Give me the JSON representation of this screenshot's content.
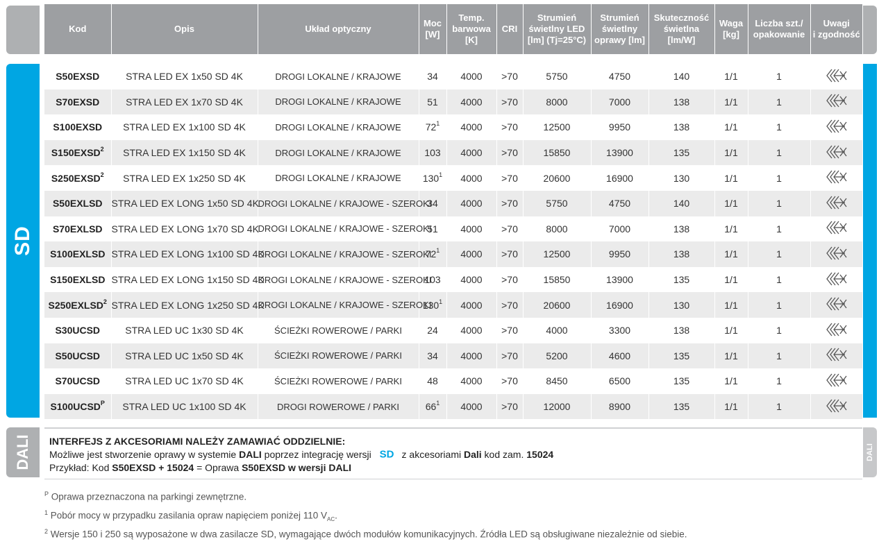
{
  "sd_tab_label": "SD",
  "dali_tab_label": "DALI",
  "dali_strip_label": "DALI",
  "headers": {
    "kod": "Kod",
    "opis": "Opis",
    "uklad": "Układ optyczny",
    "moc_1": "Moc",
    "moc_2": "[W]",
    "temp_1": "Temp.",
    "temp_2": "barwowa",
    "temp_3": "[K]",
    "cri": "CRI",
    "str_led_1": "Strumień",
    "str_led_2": "świetlny LED",
    "str_led_3": "[lm] (Tj=25°C)",
    "str_opr_1": "Strumień",
    "str_opr_2": "świetlny",
    "str_opr_3": "oprawy [lm]",
    "skut_1": "Skuteczność",
    "skut_2": "świetlna",
    "skut_3": "[lm/W]",
    "waga_1": "Waga",
    "waga_2": "[kg]",
    "liczba_1": "Liczba szt./",
    "liczba_2": "opakowanie",
    "uwagi_1": "Uwagi",
    "uwagi_2": "i zgodność"
  },
  "rows": [
    {
      "code": "S50EXSD",
      "code_sup": "",
      "desc": "STRA LED EX 1x50 SD 4K",
      "optic": "DROGI LOKALNE / KRAJOWE",
      "power": "34",
      "power_sup": "",
      "temp": "4000",
      "cri": ">70",
      "flux_led": "5750",
      "flux_lum": "4750",
      "eff": "140",
      "weight": "1/1",
      "qty": "1"
    },
    {
      "code": "S70EXSD",
      "code_sup": "",
      "desc": "STRA LED EX 1x70 SD 4K",
      "optic": "DROGI LOKALNE / KRAJOWE",
      "power": "51",
      "power_sup": "",
      "temp": "4000",
      "cri": ">70",
      "flux_led": "8000",
      "flux_lum": "7000",
      "eff": "138",
      "weight": "1/1",
      "qty": "1"
    },
    {
      "code": "S100EXSD",
      "code_sup": "",
      "desc": "STRA LED EX 1x100 SD 4K",
      "optic": "DROGI LOKALNE / KRAJOWE",
      "power": "72",
      "power_sup": "1",
      "temp": "4000",
      "cri": ">70",
      "flux_led": "12500",
      "flux_lum": "9950",
      "eff": "138",
      "weight": "1/1",
      "qty": "1"
    },
    {
      "code": "S150EXSD",
      "code_sup": "2",
      "desc": "STRA LED EX 1x150 SD 4K",
      "optic": "DROGI LOKALNE / KRAJOWE",
      "power": "103",
      "power_sup": "",
      "temp": "4000",
      "cri": ">70",
      "flux_led": "15850",
      "flux_lum": "13900",
      "eff": "135",
      "weight": "1/1",
      "qty": "1"
    },
    {
      "code": "S250EXSD",
      "code_sup": "2",
      "desc": "STRA LED EX 1x250 SD 4K",
      "optic": "DROGI LOKALNE / KRAJOWE",
      "power": "130",
      "power_sup": "1",
      "temp": "4000",
      "cri": ">70",
      "flux_led": "20600",
      "flux_lum": "16900",
      "eff": "130",
      "weight": "1/1",
      "qty": "1"
    },
    {
      "code": "S50EXLSD",
      "code_sup": "",
      "desc": "STRA LED EX LONG 1x50 SD 4K",
      "optic": "DROGI LOKALNE / KRAJOWE - SZEROKI",
      "power": "34",
      "power_sup": "",
      "temp": "4000",
      "cri": ">70",
      "flux_led": "5750",
      "flux_lum": "4750",
      "eff": "140",
      "weight": "1/1",
      "qty": "1"
    },
    {
      "code": "S70EXLSD",
      "code_sup": "",
      "desc": "STRA LED EX LONG 1x70 SD 4K",
      "optic": "DROGI LOKALNE / KRAJOWE - SZEROKI",
      "power": "51",
      "power_sup": "",
      "temp": "4000",
      "cri": ">70",
      "flux_led": "8000",
      "flux_lum": "7000",
      "eff": "138",
      "weight": "1/1",
      "qty": "1"
    },
    {
      "code": "S100EXLSD",
      "code_sup": "",
      "desc": "STRA LED EX LONG 1x100 SD 4K",
      "optic": "DROGI LOKALNE / KRAJOWE - SZEROKI",
      "power": "72",
      "power_sup": "1",
      "temp": "4000",
      "cri": ">70",
      "flux_led": "12500",
      "flux_lum": "9950",
      "eff": "138",
      "weight": "1/1",
      "qty": "1"
    },
    {
      "code": "S150EXLSD",
      "code_sup": "",
      "desc": "STRA LED EX LONG 1x150 SD 4K",
      "optic": "DROGI LOKALNE / KRAJOWE - SZEROKI",
      "power": "103",
      "power_sup": "",
      "temp": "4000",
      "cri": ">70",
      "flux_led": "15850",
      "flux_lum": "13900",
      "eff": "135",
      "weight": "1/1",
      "qty": "1"
    },
    {
      "code": "S250EXLSD",
      "code_sup": "2",
      "desc": "STRA LED EX LONG 1x250 SD 4K",
      "optic": "DROGI LOKALNE / KRAJOWE - SZEROKI",
      "power": "130",
      "power_sup": "1",
      "temp": "4000",
      "cri": ">70",
      "flux_led": "20600",
      "flux_lum": "16900",
      "eff": "130",
      "weight": "1/1",
      "qty": "1"
    },
    {
      "code": "S30UCSD",
      "code_sup": "",
      "desc": "STRA LED UC 1x30 SD 4K",
      "optic": "ŚCIEŻKI ROWEROWE / PARKI",
      "power": "24",
      "power_sup": "",
      "temp": "4000",
      "cri": ">70",
      "flux_led": "4000",
      "flux_lum": "3300",
      "eff": "138",
      "weight": "1/1",
      "qty": "1"
    },
    {
      "code": "S50UCSD",
      "code_sup": "",
      "desc": "STRA LED UC 1x50 SD 4K",
      "optic": "ŚCIEŻKI  ROWEROWE / PARKI",
      "power": "34",
      "power_sup": "",
      "temp": "4000",
      "cri": ">70",
      "flux_led": "5200",
      "flux_lum": "4600",
      "eff": "135",
      "weight": "1/1",
      "qty": "1"
    },
    {
      "code": "S70UCSD",
      "code_sup": "",
      "desc": "STRA LED UC 1x70 SD 4K",
      "optic": "ŚCIEŻKI  ROWEROWE / PARKI",
      "power": "48",
      "power_sup": "",
      "temp": "4000",
      "cri": ">70",
      "flux_led": "8450",
      "flux_lum": "6500",
      "eff": "135",
      "weight": "1/1",
      "qty": "1"
    },
    {
      "code": "S100UCSD",
      "code_sup": "P",
      "desc": "STRA LED UC 1x100 SD 4K",
      "optic": "DROGI ROWEROWE / PARKI",
      "power": "66",
      "power_sup": "1",
      "temp": "4000",
      "cri": ">70",
      "flux_led": "12000",
      "flux_lum": "8900",
      "eff": "135",
      "weight": "1/1",
      "qty": "1"
    }
  ],
  "dali": {
    "line1": "INTERFEJS Z AKCESORIAMI NALEŻY ZAMAWIAĆ ODDZIELNIE:",
    "line2_a": "Możliwe jest stworzenie oprawy w systemie ",
    "line2_b": "DALI",
    "line2_c": " poprzez integrację wersji ",
    "line2_logo": "SD",
    "line2_d": " z akcesoriami ",
    "line2_e": "Dali",
    "line2_f": " kod zam. ",
    "line2_g": "15024",
    "line3_a": "Przykład: Kod ",
    "line3_b": "S50EXSD + 15024",
    "line3_c": " = Oprawa ",
    "line3_d": "S50EXSD w wersji DALI"
  },
  "footnotes": {
    "p_mark": "P",
    "p_text": " Oprawa przeznaczona na parkingi zewnętrzne.",
    "n1_mark": "1",
    "n1_text": " Pobór mocy w przypadku zasilania opraw napięciem poniżej 110 V",
    "n1_sub": "AC",
    "n1_end": ".",
    "n2_mark": "2",
    "n2_text": " Wersje 150 i 250 są wyposażone w dwa zasilacze SD, wymagające dwóch modułów komunikacyjnych. Źródła LED są obsługiwane niezależnie od siebie."
  },
  "colors": {
    "accent": "#00a6e3",
    "header_bg": "#9d9fa2",
    "tab_gray": "#aeb0b2",
    "row_alt": "#ebebeb"
  },
  "icons": {
    "compliance": "compliance-arrows-icon"
  }
}
